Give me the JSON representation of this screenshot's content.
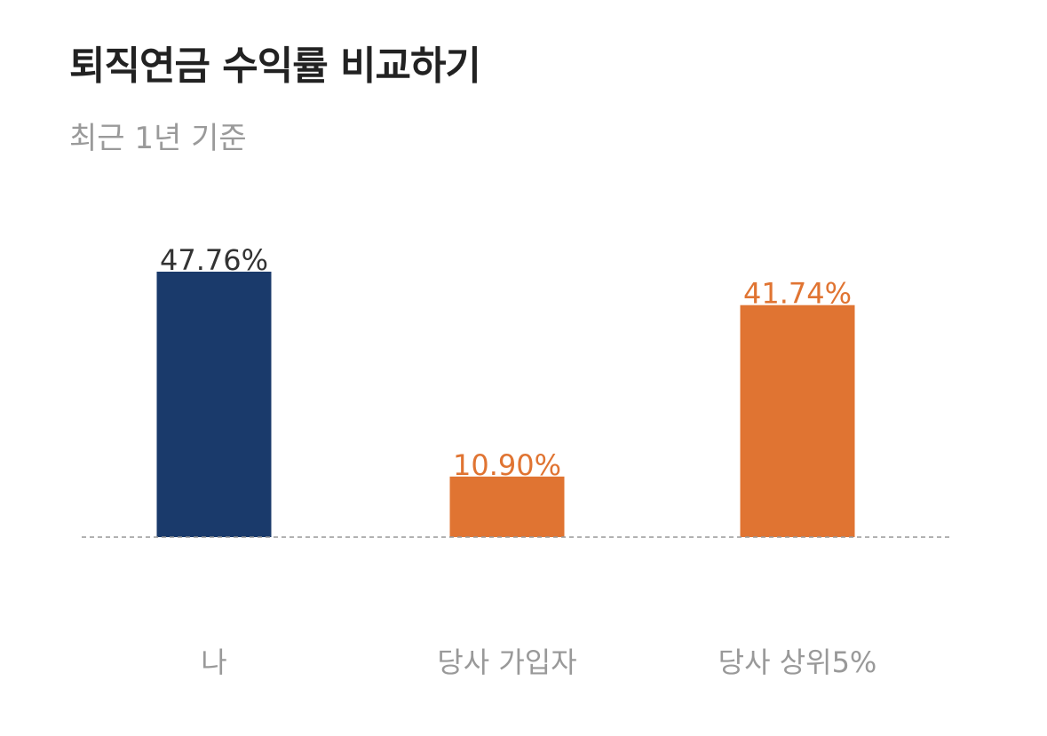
{
  "header": {
    "title": "퇴직연금 수익률 비교하기",
    "subtitle": "최근 1년 기준"
  },
  "colors": {
    "primary": "#1a3a6b",
    "accent": "#e07432",
    "value_label_primary": "#333333",
    "baseline": "#999999"
  },
  "chart_data": {
    "type": "bar",
    "categories": [
      "나",
      "당사 가입자",
      "당사 상위5%"
    ],
    "values": [
      47.76,
      10.9,
      41.74
    ],
    "value_labels": [
      "47.76%",
      "10.90%",
      "41.74%"
    ],
    "bar_colors": [
      "#1a3a6b",
      "#e07432",
      "#e07432"
    ],
    "label_colors": [
      "#333333",
      "#e07432",
      "#e07432"
    ],
    "ylim": [
      0,
      47.76
    ],
    "grid": false,
    "baseline": "dashed"
  }
}
